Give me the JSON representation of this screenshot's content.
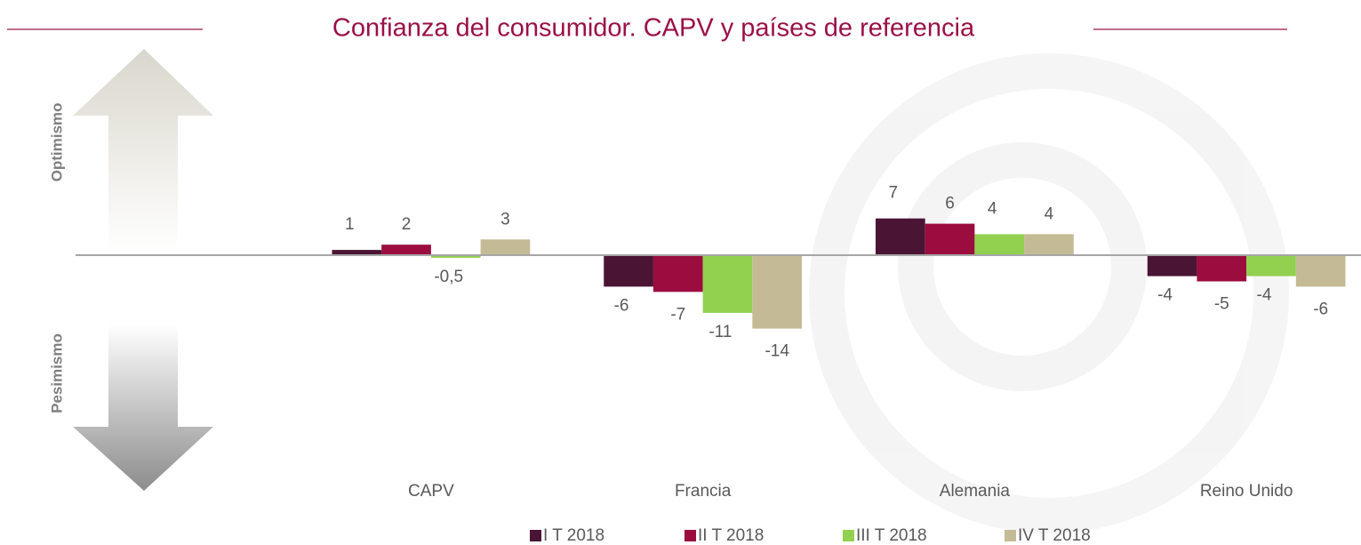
{
  "chart_data": {
    "type": "bar",
    "title": "Confianza del consumidor. CAPV y países de referencia",
    "top_label": "Optimismo",
    "bottom_label": "Pesimismo",
    "categories": [
      "CAPV",
      "Francia",
      "Alemania",
      "Reino Unido"
    ],
    "ylim": [
      -35,
      35
    ],
    "legend": "bottom",
    "series": [
      {
        "name": "I T 2018",
        "color": "#4a1535",
        "values": [
          1,
          -6,
          7,
          -4
        ],
        "value_labels": [
          "1",
          "-6",
          "7",
          "-4"
        ]
      },
      {
        "name": "II T 2018",
        "color": "#9b0d3e",
        "values": [
          2,
          -7,
          6,
          -5
        ],
        "value_labels": [
          "2",
          "-7",
          "6",
          "-5"
        ]
      },
      {
        "name": "III T 2018",
        "color": "#92d050",
        "values": [
          -0.5,
          -11,
          4,
          -4
        ],
        "value_labels": [
          "-0,5",
          "-11",
          "4",
          "-4"
        ]
      },
      {
        "name": "IV T 2018",
        "color": "#c4bb96",
        "values": [
          3,
          -14,
          4,
          -6
        ],
        "value_labels": [
          "3",
          "-14",
          "4",
          "-6"
        ]
      }
    ]
  }
}
